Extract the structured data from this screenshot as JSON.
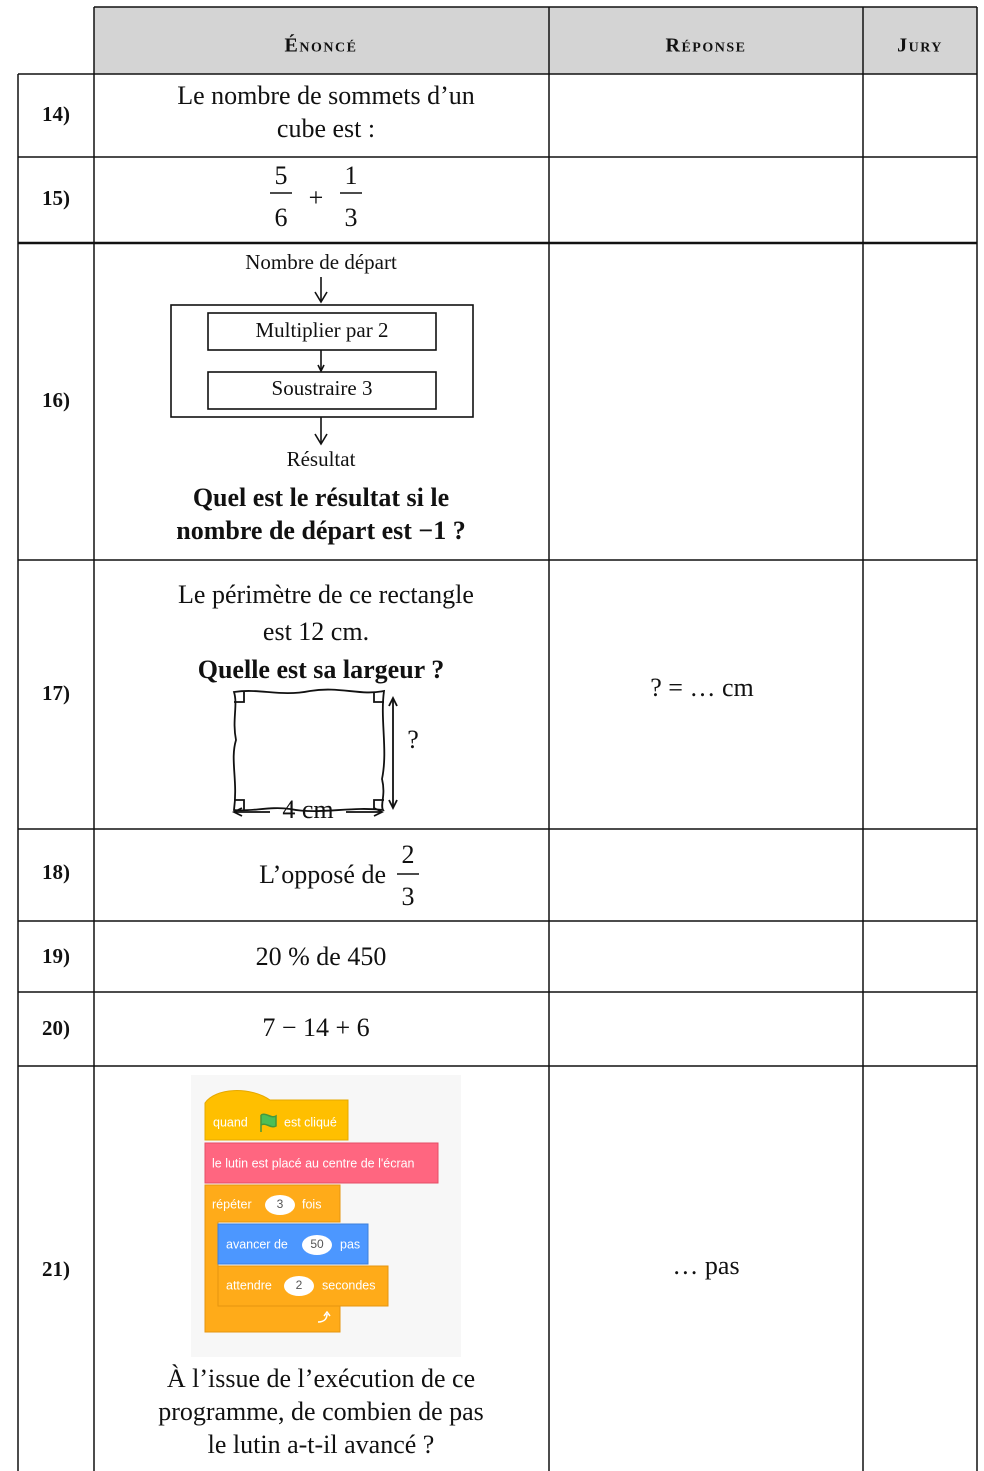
{
  "header": {
    "columns": [
      "Énoncé",
      "Réponse",
      "Jury"
    ]
  },
  "rows": [
    {
      "number": "14)",
      "statement": [
        "Le nombre de sommets d’un",
        "cube est :"
      ]
    },
    {
      "number": "15)",
      "fraction_1": [
        "5",
        "6"
      ],
      "operator": "+",
      "fraction_2": [
        "1",
        "3"
      ]
    },
    {
      "number": "16)",
      "diagram": {
        "start": "Nombre de départ",
        "steps": [
          "Multiplier par 2",
          "Soustraire 3"
        ],
        "end": "Résultat"
      },
      "question": [
        "Quel est le résultat si le",
        "nombre de départ est −1 ?"
      ]
    },
    {
      "number": "17)",
      "statement": [
        "Le périmètre de ce rectangle",
        "est 12 cm."
      ],
      "question": "Quelle est sa largeur ?",
      "figure": {
        "height_label": "?",
        "width_label": "4 cm"
      },
      "answer": "? = … cm"
    },
    {
      "number": "18)",
      "statement": "L’opposé de",
      "fraction": [
        "2",
        "3"
      ]
    },
    {
      "number": "19)",
      "statement": "20 % de 450"
    },
    {
      "number": "20)",
      "statement": "7 − 14 + 6"
    },
    {
      "number": "21)",
      "program": {
        "hat": [
          "quand",
          "est cliqué"
        ],
        "place": "le lutin est placé au centre de l'écran",
        "repeat": [
          "répéter",
          "3",
          "fois"
        ],
        "move": [
          "avancer de",
          "50",
          "pas"
        ],
        "wait": [
          "attendre",
          "2",
          "secondes"
        ]
      },
      "question": [
        "À l’issue de l’exécution de ce",
        "programme, de combien de pas",
        "le lutin a-t-il avancé ?"
      ],
      "answer": "… pas"
    }
  ]
}
